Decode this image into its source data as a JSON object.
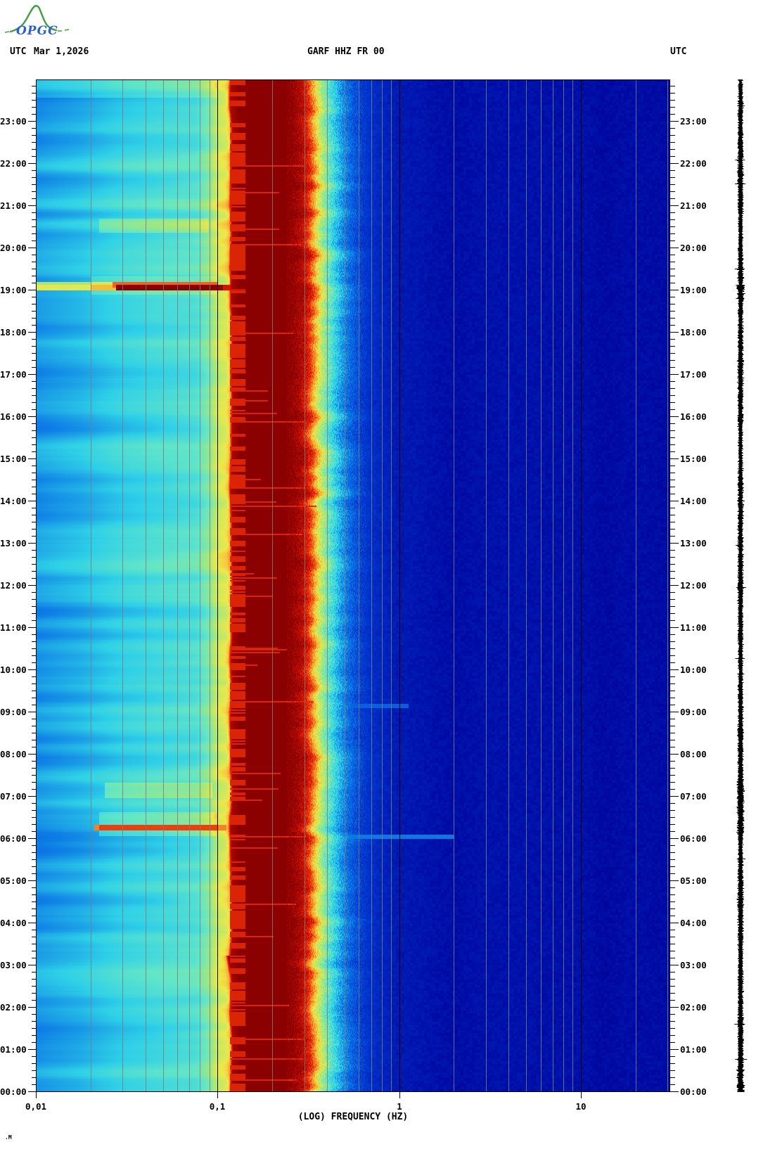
{
  "header": {
    "utc_left": "UTC",
    "date": "Mar 1,2026",
    "title": "GARF HHZ FR 00",
    "utc_right": "UTC"
  },
  "logo": {
    "text": "OPGC",
    "mountain_color": "#3f9e3f",
    "text_color": "#2e5fd0"
  },
  "footnote": ".M",
  "x_axis": {
    "label": "(LOG) FREQUENCY (HZ)",
    "ticks": [
      {
        "f": 0.01,
        "label": "0,01"
      },
      {
        "f": 0.1,
        "label": "0,1"
      },
      {
        "f": 1,
        "label": "1"
      },
      {
        "f": 10,
        "label": "10"
      }
    ]
  },
  "y_axis": {
    "hour_labels": [
      "00:00",
      "01:00",
      "02:00",
      "03:00",
      "04:00",
      "05:00",
      "06:00",
      "07:00",
      "08:00",
      "09:00",
      "10:00",
      "11:00",
      "12:00",
      "13:00",
      "14:00",
      "15:00",
      "16:00",
      "17:00",
      "18:00",
      "19:00",
      "20:00",
      "21:00",
      "22:00",
      "23:00"
    ],
    "minor_tick_minutes": 10,
    "sides": [
      "left",
      "right"
    ]
  },
  "chart_data": {
    "type": "heatmap",
    "title": "GARF HHZ FR 00",
    "xlabel": "(LOG) FREQUENCY (HZ)",
    "x_scale": "log",
    "x_range_hz": [
      0.01,
      31
    ],
    "y_range_hours": [
      0,
      24
    ],
    "time_direction": "00:00 at bottom, 24:00 at top",
    "gridlines": {
      "black_hz": [
        0.1,
        1,
        10
      ],
      "gray_hz": [
        0.02,
        0.03,
        0.04,
        0.05,
        0.06,
        0.07,
        0.08,
        0.09,
        0.2,
        0.3,
        0.4,
        0.5,
        0.6,
        0.7,
        0.8,
        0.9,
        2,
        3,
        4,
        5,
        6,
        7,
        8,
        9,
        20,
        30
      ]
    },
    "colormap": [
      [
        0.0,
        "#000780"
      ],
      [
        0.08,
        "#0008A0"
      ],
      [
        0.2,
        "#0038D0"
      ],
      [
        0.32,
        "#0E7EE6"
      ],
      [
        0.42,
        "#2FD0E8"
      ],
      [
        0.5,
        "#62E6C8"
      ],
      [
        0.58,
        "#A8E878"
      ],
      [
        0.66,
        "#EEE84A"
      ],
      [
        0.74,
        "#FBA02E"
      ],
      [
        0.82,
        "#F44D14"
      ],
      [
        0.9,
        "#D31500"
      ],
      [
        1.0,
        "#8B0000"
      ]
    ],
    "spectral_profile": [
      [
        -2.0,
        0.355
      ],
      [
        -1.75,
        0.39
      ],
      [
        -1.55,
        0.43
      ],
      [
        -1.3,
        0.46
      ],
      [
        -1.12,
        0.48
      ],
      [
        -1.05,
        0.54
      ],
      [
        -1.0,
        0.63
      ],
      [
        -0.955,
        0.655
      ],
      [
        -0.938,
        0.7
      ],
      [
        -0.922,
        0.96
      ],
      [
        -0.88,
        1.0
      ],
      [
        -0.6,
        1.0
      ],
      [
        -0.54,
        0.95
      ],
      [
        -0.5,
        0.87
      ],
      [
        -0.47,
        0.74
      ],
      [
        -0.44,
        0.63
      ],
      [
        -0.41,
        0.55
      ],
      [
        -0.37,
        0.46
      ],
      [
        -0.32,
        0.36
      ],
      [
        -0.27,
        0.28
      ],
      [
        -0.2,
        0.205
      ],
      [
        -0.1,
        0.155
      ],
      [
        0.0,
        0.125
      ],
      [
        0.3,
        0.11
      ],
      [
        0.7,
        0.105
      ],
      [
        1.1,
        0.1
      ],
      [
        1.49,
        0.09
      ]
    ],
    "noise": {
      "seed": 20260301,
      "stripe_amp_low": 0.085,
      "stripe_amp_mid": 0.05,
      "edge_jitter_lf": 0.05,
      "dash_zone_lf": [
        -0.932,
        -0.845
      ],
      "dash_red_value": 0.88,
      "dash_fraction": 0.5,
      "red_dash_extension_rate": 0.045,
      "blue_mottle": 0.032,
      "transition_speckle": 0.11
    },
    "events": [
      {
        "label": "broadband low-frequency event",
        "t0": 19.05,
        "t1": 19.13,
        "mode": "set",
        "segments": [
          [
            -2.0,
            -1.56,
            0.65
          ],
          [
            -1.56,
            -0.97,
            0.98
          ],
          [
            -0.97,
            -0.83,
            0.9
          ]
        ]
      },
      {
        "label": "event tail",
        "t0": 19.13,
        "t1": 19.2,
        "mode": "set",
        "segments": [
          [
            -2.0,
            -1.58,
            0.58
          ],
          [
            -1.58,
            -1.0,
            0.74
          ]
        ]
      },
      {
        "label": "low-frequency surge",
        "t0": 6.25,
        "t1": 6.32,
        "mode": "set",
        "segments": [
          [
            -1.68,
            -0.95,
            0.77
          ]
        ]
      },
      {
        "label": "elevated band",
        "t0": 7.0,
        "t1": 7.33,
        "mode": "add",
        "segments": [
          [
            -1.62,
            -1.03,
            0.09
          ]
        ]
      },
      {
        "label": "elevated band",
        "t0": 6.1,
        "t1": 6.6,
        "mode": "add",
        "segments": [
          [
            -1.65,
            -1.0,
            0.07
          ]
        ]
      },
      {
        "label": "elevated band",
        "t0": 20.42,
        "t1": 20.68,
        "mode": "add",
        "segments": [
          [
            -1.65,
            -1.05,
            0.07
          ]
        ]
      },
      {
        "label": "elevated band",
        "t0": 18.95,
        "t1": 19.3,
        "mode": "add",
        "segments": [
          [
            -1.7,
            -1.0,
            0.06
          ]
        ]
      },
      {
        "label": "faint line 0.4-2 Hz",
        "t0": 6.05,
        "t1": 6.09,
        "mode": "set",
        "segments": [
          [
            -0.38,
            0.3,
            0.31
          ]
        ]
      },
      {
        "label": "faint line 0.4-1 Hz",
        "t0": 9.15,
        "t1": 9.19,
        "mode": "set",
        "segments": [
          [
            -0.42,
            0.05,
            0.27
          ]
        ]
      },
      {
        "label": "lighter band near top",
        "t0": 23.6,
        "t1": 24.0,
        "mode": "add",
        "segments": [
          [
            -2.0,
            -1.0,
            0.05
          ]
        ]
      }
    ]
  },
  "colors": {
    "background": "#ffffff",
    "grid_gray": "#7d7d7d",
    "grid_black": "#000000",
    "text": "#000000",
    "trace": "#000000"
  }
}
